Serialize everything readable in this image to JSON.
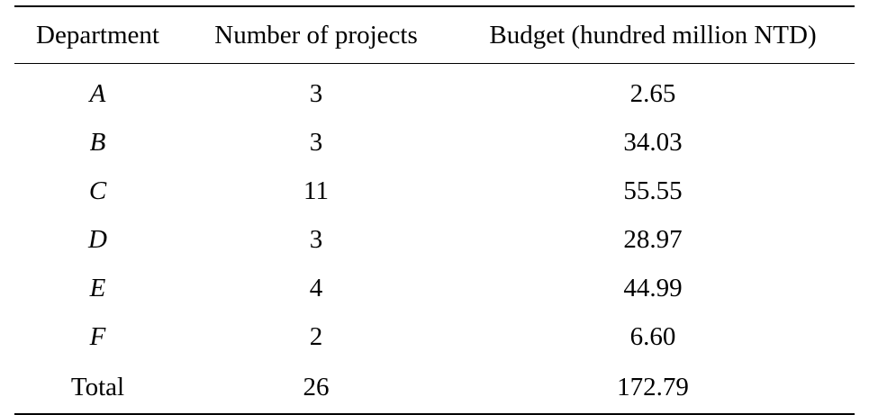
{
  "table": {
    "headers": [
      "Department",
      "Number of projects",
      "Budget (hundred million NTD)"
    ],
    "rows": [
      {
        "department": "A",
        "projects": "3",
        "budget": "2.65"
      },
      {
        "department": "B",
        "projects": "3",
        "budget": "34.03"
      },
      {
        "department": "C",
        "projects": "11",
        "budget": "55.55"
      },
      {
        "department": "D",
        "projects": "3",
        "budget": "28.97"
      },
      {
        "department": "E",
        "projects": "4",
        "budget": "44.99"
      },
      {
        "department": "F",
        "projects": "2",
        "budget": "6.60"
      }
    ],
    "total": {
      "label": "Total",
      "projects": "26",
      "budget": "172.79"
    }
  }
}
